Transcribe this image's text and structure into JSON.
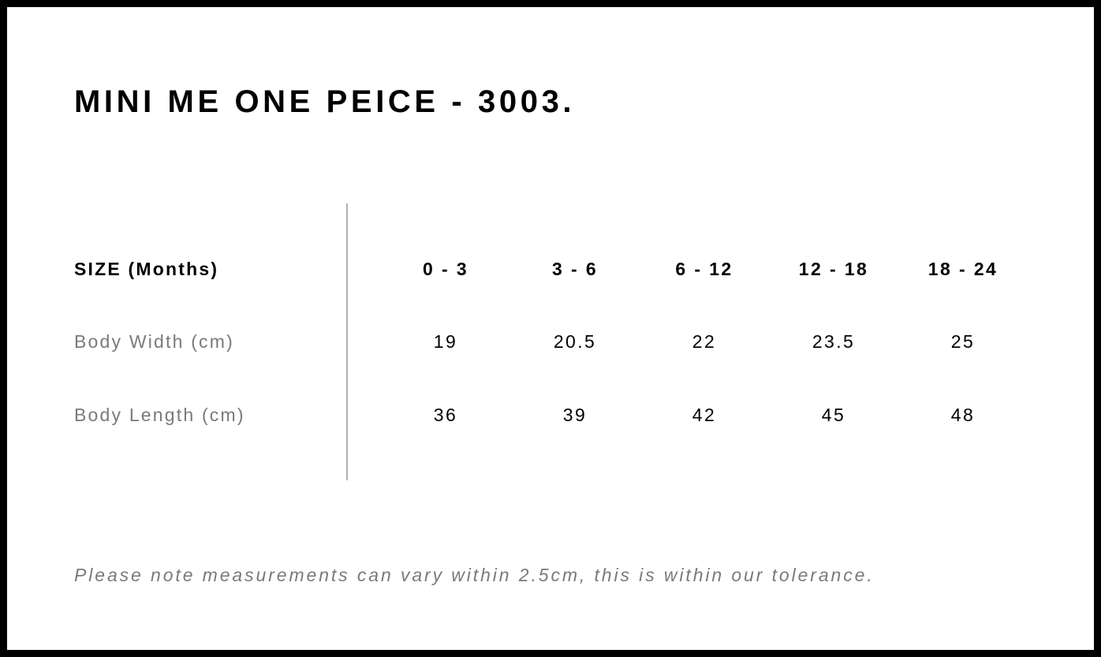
{
  "title": "MINI ME ONE PEICE - 3003.",
  "table": {
    "header": {
      "label": "SIZE (Months)",
      "sizes": [
        "0 - 3",
        "3 - 6",
        "6 - 12",
        "12 - 18",
        "18 - 24"
      ]
    },
    "rows": [
      {
        "label": "Body Width (cm)",
        "values": [
          "19",
          "20.5",
          "22",
          "23.5",
          "25"
        ]
      },
      {
        "label": "Body Length (cm)",
        "values": [
          "36",
          "39",
          "42",
          "45",
          "48"
        ]
      }
    ]
  },
  "note": "Please note measurements can vary within 2.5cm, this is within our tolerance.",
  "colors": {
    "border": "#000000",
    "label_gray": "#7a7a7a",
    "divider": "#b0b0b0"
  }
}
